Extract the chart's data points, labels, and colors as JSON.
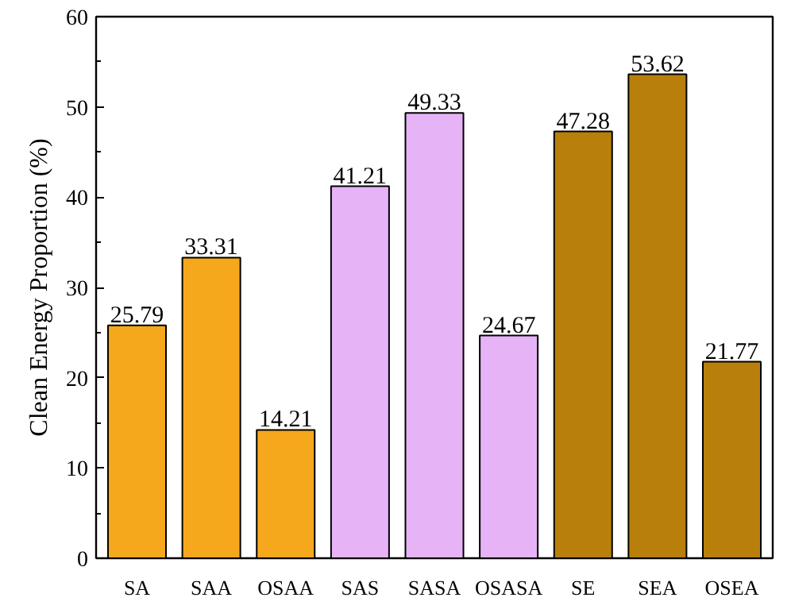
{
  "chart_data": {
    "type": "bar",
    "ylabel": "Clean Energy Proportion (%)",
    "categories": [
      "SA",
      "SAA",
      "OSAA",
      "SAS",
      "SASA",
      "OSASA",
      "SE",
      "SEA",
      "OSEA"
    ],
    "values": [
      25.79,
      33.31,
      14.21,
      41.21,
      49.33,
      24.67,
      47.28,
      53.62,
      21.77
    ],
    "colors": [
      "#f5a81c",
      "#f5a81c",
      "#f5a81c",
      "#e6b3f7",
      "#e6b3f7",
      "#e6b3f7",
      "#b8800a",
      "#b8800a",
      "#b8800a"
    ],
    "ylim": [
      0,
      60
    ],
    "yticks": [
      0,
      10,
      20,
      30,
      40,
      50,
      60
    ],
    "data_labels": true
  }
}
